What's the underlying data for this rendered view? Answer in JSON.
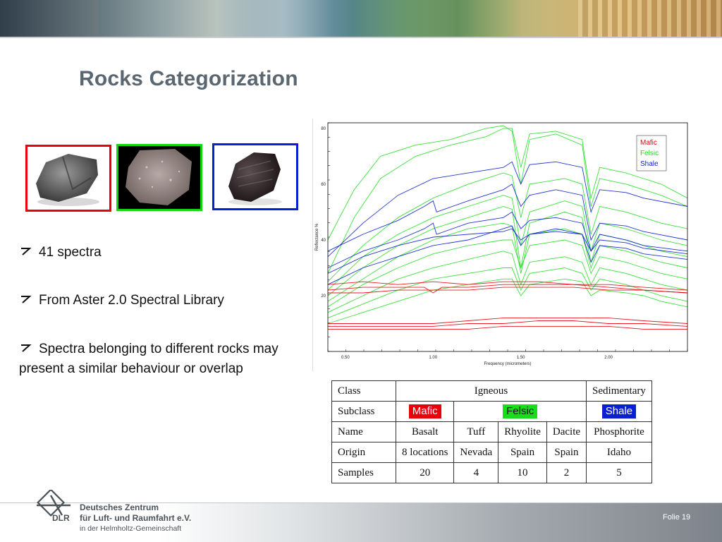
{
  "slide": {
    "title": "Rocks Categorization",
    "bullets": [
      "41 spectra",
      "From Aster 2.0 Spectral Library",
      "Spectra belonging to different rocks may present a similar behaviour or overlap"
    ],
    "footer": {
      "org_line1": "Deutsches Zentrum",
      "org_line2": "für Luft- und Raumfahrt e.V.",
      "org_line3": "in der Helmholtz-Gemeinschaft",
      "logo_text": "DLR",
      "slide_label": "Folie 19"
    }
  },
  "colors": {
    "mafic": "#e8000b",
    "felsic": "#1bdc1b",
    "shale": "#0a1fd0",
    "title": "#5a6670"
  },
  "rock_frames": [
    "mafic",
    "felsic",
    "shale"
  ],
  "chart_data": {
    "type": "line",
    "xlabel": "Frequency (micrometers)",
    "ylabel": "Reflectance %",
    "xlim": [
      0.4,
      2.45
    ],
    "ylim": [
      0,
      82
    ],
    "x_ticks": [
      "0.50",
      "1.00",
      "1.50",
      "2.00"
    ],
    "y_ticks": [
      "20",
      "40",
      "60",
      "80"
    ],
    "legend": [
      "Mafic",
      "Felsic",
      "Shale"
    ],
    "legend_position": "top-right",
    "series": [
      {
        "group": "Felsic",
        "x": [
          0.4,
          0.55,
          0.7,
          0.9,
          1.1,
          1.3,
          1.4,
          1.45,
          1.5,
          1.55,
          1.7,
          1.85,
          1.9,
          1.95,
          2.1,
          2.2,
          2.3,
          2.45
        ],
        "y": [
          28,
          48,
          62,
          70,
          74,
          77,
          80,
          80,
          66,
          78,
          79,
          76,
          55,
          66,
          64,
          62,
          60,
          55
        ]
      },
      {
        "group": "Felsic",
        "x": [
          0.4,
          0.55,
          0.7,
          0.9,
          1.1,
          1.3,
          1.4,
          1.45,
          1.5,
          1.55,
          1.7,
          1.85,
          1.9,
          1.95,
          2.1,
          2.2,
          2.3,
          2.45
        ],
        "y": [
          40,
          58,
          70,
          74,
          76,
          80,
          81,
          79,
          60,
          76,
          78,
          74,
          52,
          62,
          60,
          58,
          56,
          52
        ]
      },
      {
        "group": "Felsic",
        "x": [
          0.4,
          0.6,
          0.8,
          1.0,
          1.2,
          1.4,
          1.45,
          1.5,
          1.55,
          1.75,
          1.85,
          1.9,
          1.95,
          2.1,
          2.2,
          2.3,
          2.45
        ],
        "y": [
          25,
          38,
          48,
          55,
          60,
          64,
          63,
          48,
          60,
          62,
          60,
          42,
          52,
          50,
          48,
          46,
          44
        ]
      },
      {
        "group": "Felsic",
        "x": [
          0.4,
          0.6,
          0.8,
          1.0,
          1.2,
          1.4,
          1.45,
          1.5,
          1.55,
          1.75,
          1.85,
          1.9,
          1.95,
          2.1,
          2.2,
          2.3,
          2.45
        ],
        "y": [
          22,
          34,
          42,
          48,
          52,
          56,
          55,
          38,
          50,
          54,
          52,
          36,
          46,
          44,
          42,
          40,
          38
        ]
      },
      {
        "group": "Felsic",
        "x": [
          0.4,
          0.6,
          0.8,
          1.0,
          1.2,
          1.4,
          1.45,
          1.5,
          1.55,
          1.75,
          1.85,
          1.9,
          1.95,
          2.1,
          2.2,
          2.3,
          2.45
        ],
        "y": [
          20,
          30,
          38,
          44,
          48,
          52,
          51,
          30,
          46,
          50,
          48,
          32,
          42,
          40,
          38,
          36,
          34
        ]
      },
      {
        "group": "Felsic",
        "x": [
          0.4,
          0.6,
          0.8,
          1.0,
          1.2,
          1.4,
          1.45,
          1.5,
          1.55,
          1.75,
          1.85,
          1.9,
          1.95,
          2.1,
          2.2,
          2.3,
          2.45
        ],
        "y": [
          18,
          26,
          34,
          40,
          44,
          46,
          45,
          28,
          42,
          44,
          42,
          30,
          38,
          36,
          34,
          32,
          30
        ]
      },
      {
        "group": "Felsic",
        "x": [
          0.4,
          0.6,
          0.8,
          1.0,
          1.2,
          1.4,
          1.45,
          1.5,
          1.55,
          1.75,
          1.85,
          1.9,
          1.95,
          2.1,
          2.2,
          2.3,
          2.45
        ],
        "y": [
          16,
          24,
          30,
          35,
          38,
          40,
          40,
          30,
          38,
          40,
          38,
          28,
          34,
          32,
          30,
          28,
          26
        ]
      },
      {
        "group": "Felsic",
        "x": [
          0.4,
          0.6,
          0.8,
          1.0,
          1.2,
          1.4,
          1.45,
          1.5,
          1.55,
          1.75,
          1.85,
          1.9,
          1.95,
          2.1,
          2.2,
          2.3,
          2.45
        ],
        "y": [
          14,
          20,
          26,
          30,
          33,
          36,
          35,
          24,
          32,
          34,
          32,
          24,
          30,
          28,
          26,
          24,
          22
        ]
      },
      {
        "group": "Felsic",
        "x": [
          0.4,
          0.6,
          0.8,
          1.0,
          1.2,
          1.4,
          1.45,
          1.5,
          1.55,
          1.75,
          1.85,
          1.9,
          1.95,
          2.1,
          2.2,
          2.3,
          2.45
        ],
        "y": [
          12,
          17,
          22,
          26,
          28,
          30,
          30,
          22,
          28,
          30,
          28,
          22,
          26,
          24,
          22,
          20,
          18
        ]
      },
      {
        "group": "Felsic",
        "x": [
          0.4,
          0.6,
          0.8,
          1.0,
          1.2,
          1.4,
          1.45,
          1.5,
          1.55,
          1.75,
          1.85,
          1.9,
          1.95,
          2.1,
          2.2,
          2.3,
          2.45
        ],
        "y": [
          10,
          14,
          18,
          22,
          24,
          26,
          26,
          20,
          24,
          26,
          25,
          20,
          22,
          21,
          20,
          18,
          16
        ]
      },
      {
        "group": "Shale",
        "x": [
          0.4,
          0.6,
          0.8,
          0.95,
          1.0,
          1.02,
          1.2,
          1.4,
          1.45,
          1.5,
          1.55,
          1.7,
          1.85,
          1.9,
          1.95,
          2.1,
          2.2,
          2.45
        ],
        "y": [
          36,
          42,
          47,
          52,
          54,
          50,
          54,
          58,
          60,
          52,
          56,
          58,
          56,
          40,
          46,
          45,
          43,
          40
        ]
      },
      {
        "group": "Shale",
        "x": [
          0.4,
          0.6,
          0.8,
          0.95,
          1.0,
          1.02,
          1.2,
          1.4,
          1.45,
          1.5,
          1.55,
          1.7,
          1.85,
          1.9,
          1.95,
          2.1,
          2.2,
          2.45
        ],
        "y": [
          30,
          36,
          40,
          44,
          46,
          42,
          46,
          48,
          50,
          44,
          47,
          48,
          46,
          36,
          42,
          40,
          38,
          36
        ]
      },
      {
        "group": "Shale",
        "x": [
          0.4,
          0.6,
          0.8,
          1.0,
          1.2,
          1.4,
          1.45,
          1.5,
          1.55,
          1.7,
          1.85,
          1.9,
          1.95,
          2.1,
          2.2,
          2.45
        ],
        "y": [
          34,
          46,
          56,
          62,
          64,
          66,
          68,
          60,
          67,
          68,
          66,
          50,
          58,
          57,
          55,
          52
        ]
      },
      {
        "group": "Shale",
        "x": [
          0.4,
          0.6,
          0.8,
          1.0,
          1.2,
          1.4,
          1.45,
          1.5,
          1.55,
          1.7,
          1.85,
          1.9,
          1.95,
          2.1,
          2.2,
          2.45
        ],
        "y": [
          24,
          30,
          34,
          38,
          40,
          44,
          45,
          38,
          42,
          44,
          42,
          32,
          38,
          37,
          35,
          33
        ]
      },
      {
        "group": "Shale",
        "x": [
          0.4,
          0.6,
          0.8,
          1.0,
          1.2,
          1.4,
          1.45,
          1.5,
          1.55,
          1.7,
          1.85,
          1.9,
          1.95,
          2.1,
          2.2,
          2.45
        ],
        "y": [
          28,
          34,
          38,
          41,
          42,
          43,
          44,
          40,
          42,
          43,
          42,
          36,
          40,
          39,
          37,
          35
        ]
      },
      {
        "group": "Mafic",
        "x": [
          0.4,
          0.6,
          0.8,
          1.0,
          1.2,
          1.4,
          1.6,
          1.8,
          2.0,
          2.2,
          2.45
        ],
        "y": [
          24,
          25,
          24,
          25,
          24,
          25,
          25,
          24,
          24,
          23,
          22
        ]
      },
      {
        "group": "Mafic",
        "x": [
          0.4,
          0.6,
          0.8,
          0.95,
          1.0,
          1.05,
          1.2,
          1.4,
          1.6,
          1.8,
          2.0,
          2.2,
          2.45
        ],
        "y": [
          22,
          23,
          23,
          23,
          21,
          23,
          23,
          24,
          24,
          24,
          23,
          22,
          21
        ]
      },
      {
        "group": "Mafic",
        "x": [
          0.4,
          0.6,
          0.8,
          1.0,
          1.2,
          1.4,
          1.6,
          1.8,
          2.0,
          2.2,
          2.45
        ],
        "y": [
          21,
          21,
          22,
          22,
          22,
          23,
          23,
          23,
          22,
          22,
          21
        ]
      },
      {
        "group": "Mafic",
        "x": [
          0.4,
          0.6,
          0.8,
          1.0,
          1.2,
          1.4,
          1.6,
          1.8,
          2.0,
          2.2,
          2.45
        ],
        "y": [
          10,
          10,
          10,
          10,
          11,
          12,
          12,
          12,
          12,
          11,
          10
        ]
      },
      {
        "group": "Mafic",
        "x": [
          0.4,
          0.6,
          0.8,
          1.0,
          1.2,
          1.4,
          1.6,
          1.8,
          2.0,
          2.2,
          2.45
        ],
        "y": [
          9,
          9,
          9,
          9,
          10,
          10,
          11,
          11,
          10,
          10,
          9
        ]
      },
      {
        "group": "Mafic",
        "x": [
          0.4,
          0.6,
          0.8,
          1.0,
          1.2,
          1.4,
          1.6,
          1.8,
          2.0,
          2.2,
          2.45
        ],
        "y": [
          8,
          8,
          8,
          8,
          8,
          9,
          9,
          9,
          9,
          8,
          8
        ]
      }
    ]
  },
  "table": {
    "rows": [
      {
        "head": "Class",
        "cells": [
          {
            "text": "Igneous",
            "span": 4
          },
          {
            "text": "Sedimentary",
            "span": 1
          }
        ]
      },
      {
        "head": "Subclass",
        "cells": [
          {
            "text": "Mafic",
            "span": 1,
            "tag": "mafic"
          },
          {
            "text": "Felsic",
            "span": 3,
            "tag": "felsic"
          },
          {
            "text": "Shale",
            "span": 1,
            "tag": "shale"
          }
        ]
      },
      {
        "head": "Name",
        "cells": [
          {
            "text": "Basalt",
            "span": 1
          },
          {
            "text": "Tuff",
            "span": 1
          },
          {
            "text": "Rhyolite",
            "span": 1
          },
          {
            "text": "Dacite",
            "span": 1
          },
          {
            "text": "Phosphorite",
            "span": 1
          }
        ]
      },
      {
        "head": "Origin",
        "cells": [
          {
            "text": "8 locations",
            "span": 1
          },
          {
            "text": "Nevada",
            "span": 1
          },
          {
            "text": "Spain",
            "span": 1
          },
          {
            "text": "Spain",
            "span": 1
          },
          {
            "text": "Idaho",
            "span": 1
          }
        ]
      },
      {
        "head": "Samples",
        "cells": [
          {
            "text": "20",
            "span": 1
          },
          {
            "text": "4",
            "span": 1
          },
          {
            "text": "10",
            "span": 1
          },
          {
            "text": "2",
            "span": 1
          },
          {
            "text": "5",
            "span": 1
          }
        ]
      }
    ]
  }
}
